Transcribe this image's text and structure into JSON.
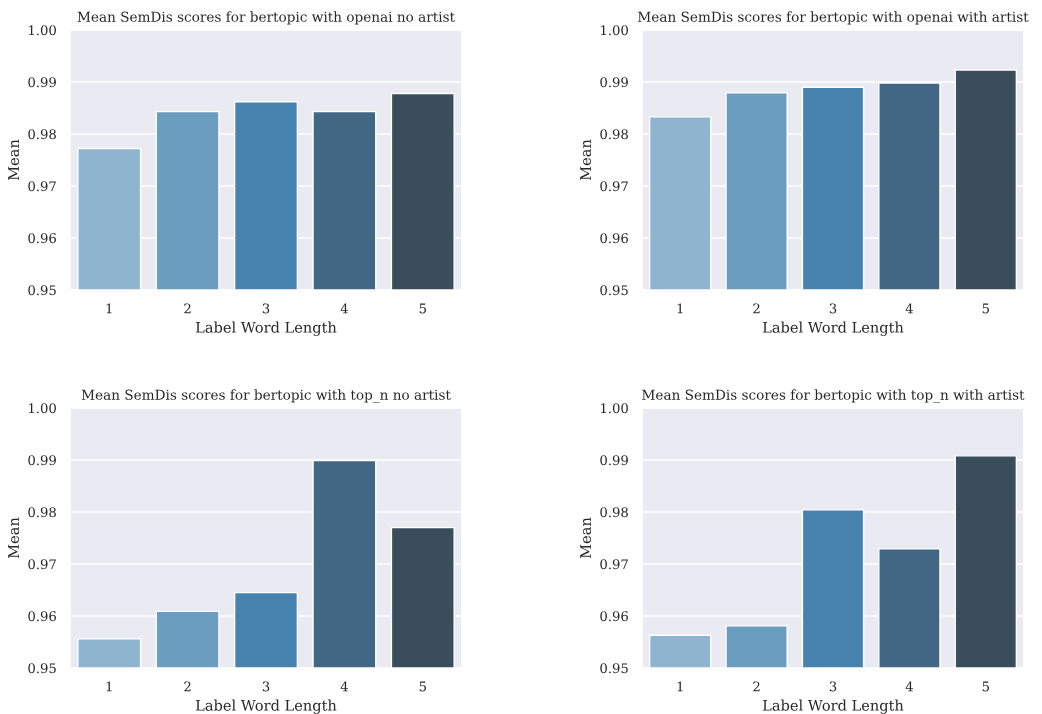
{
  "chart_data": [
    {
      "type": "bar",
      "title": "Mean SemDis scores for bertopic with openai no artist",
      "xlabel": "Label Word Length",
      "ylabel": "Mean",
      "categories": [
        "1",
        "2",
        "3",
        "4",
        "5"
      ],
      "values": [
        0.9772,
        0.9843,
        0.9862,
        0.9843,
        0.9878
      ],
      "colors": [
        "#8fb4cf",
        "#6b9dbf",
        "#4883b0",
        "#416784",
        "#3a4d5b"
      ],
      "ylim": [
        0.95,
        1.0
      ],
      "yticks": [
        {
          "value": 0.95,
          "label": "0.95"
        },
        {
          "value": 0.96,
          "label": "0.96"
        },
        {
          "value": 0.97,
          "label": "0.97"
        },
        {
          "value": 0.98,
          "label": "0.98"
        },
        {
          "value": 0.99,
          "label": "0.99"
        },
        {
          "value": 1.0,
          "label": "1.00"
        }
      ],
      "grid": "y"
    },
    {
      "type": "bar",
      "title": "Mean SemDis scores for bertopic with openai with artist",
      "xlabel": "Label Word Length",
      "ylabel": "Mean",
      "categories": [
        "1",
        "2",
        "3",
        "4",
        "5"
      ],
      "values": [
        0.9833,
        0.9879,
        0.989,
        0.9898,
        0.9923
      ],
      "colors": [
        "#8fb4cf",
        "#6b9dbf",
        "#4883b0",
        "#416784",
        "#3a4d5b"
      ],
      "ylim": [
        0.95,
        1.0
      ],
      "yticks": [
        {
          "value": 0.95,
          "label": "0.95"
        },
        {
          "value": 0.96,
          "label": "0.96"
        },
        {
          "value": 0.97,
          "label": "0.97"
        },
        {
          "value": 0.98,
          "label": "0.98"
        },
        {
          "value": 0.99,
          "label": "0.99"
        },
        {
          "value": 1.0,
          "label": "1.00"
        }
      ],
      "grid": "y"
    },
    {
      "type": "bar",
      "title": "Mean SemDis scores for bertopic with top_n no artist",
      "xlabel": "Label Word Length",
      "ylabel": "Mean",
      "categories": [
        "1",
        "2",
        "3",
        "4",
        "5"
      ],
      "values": [
        0.9556,
        0.9609,
        0.9645,
        0.9899,
        0.977
      ],
      "colors": [
        "#8fb4cf",
        "#6b9dbf",
        "#4883b0",
        "#416784",
        "#3a4d5b"
      ],
      "ylim": [
        0.95,
        1.0
      ],
      "yticks": [
        {
          "value": 0.95,
          "label": "0.95"
        },
        {
          "value": 0.96,
          "label": "0.96"
        },
        {
          "value": 0.97,
          "label": "0.97"
        },
        {
          "value": 0.98,
          "label": "0.98"
        },
        {
          "value": 0.99,
          "label": "0.99"
        },
        {
          "value": 1.0,
          "label": "1.00"
        }
      ],
      "grid": "y"
    },
    {
      "type": "bar",
      "title": "Mean SemDis scores for bertopic with top_n with artist",
      "xlabel": "Label Word Length",
      "ylabel": "Mean",
      "categories": [
        "1",
        "2",
        "3",
        "4",
        "5"
      ],
      "values": [
        0.9563,
        0.9581,
        0.9804,
        0.9729,
        0.9908
      ],
      "colors": [
        "#8fb4cf",
        "#6b9dbf",
        "#4883b0",
        "#416784",
        "#3a4d5b"
      ],
      "ylim": [
        0.95,
        1.0
      ],
      "yticks": [
        {
          "value": 0.95,
          "label": "0.95"
        },
        {
          "value": 0.96,
          "label": "0.96"
        },
        {
          "value": 0.97,
          "label": "0.97"
        },
        {
          "value": 0.98,
          "label": "0.98"
        },
        {
          "value": 0.99,
          "label": "0.99"
        },
        {
          "value": 1.0,
          "label": "1.00"
        }
      ],
      "grid": "y"
    }
  ]
}
